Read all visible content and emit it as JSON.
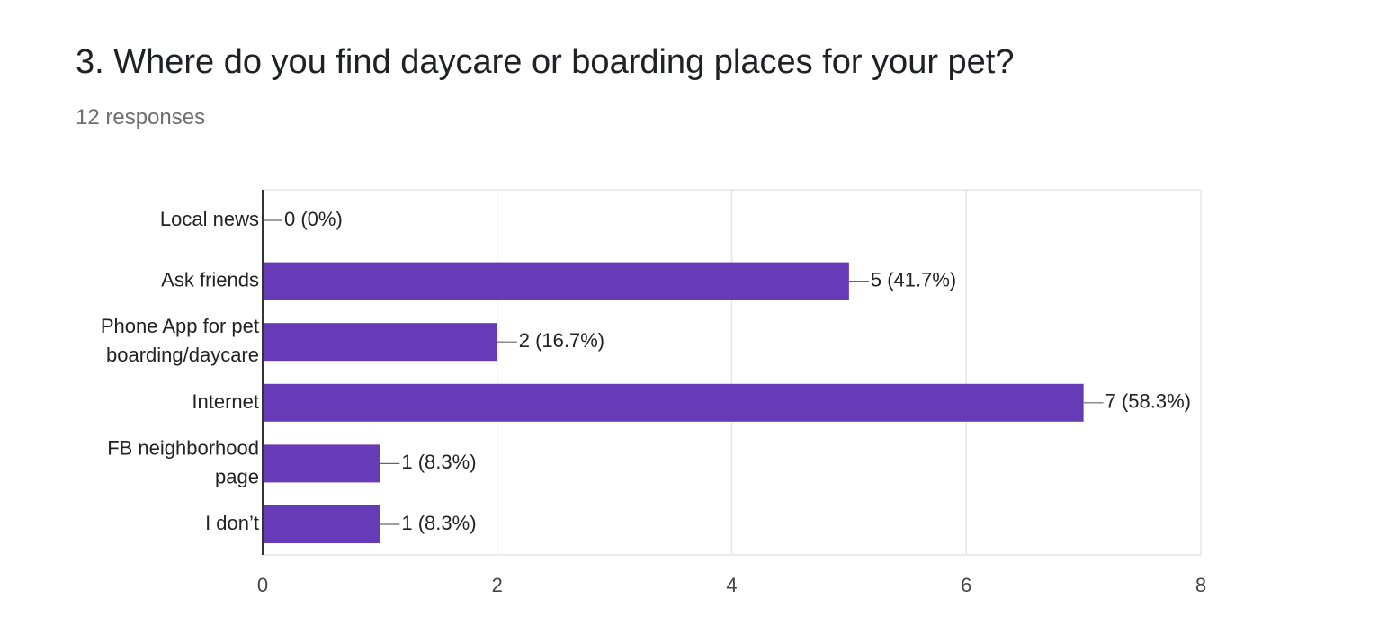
{
  "question": {
    "title": "3. Where do you find daycare or boarding places for your pet?",
    "responses": "12 responses"
  },
  "colors": {
    "bar": "#673ab7",
    "grid": "#e6e6e6",
    "axis": "#333333"
  },
  "chart_data": {
    "type": "bar",
    "orientation": "horizontal",
    "title": "3. Where do you find daycare or boarding places for your pet?",
    "subtitle": "12 responses",
    "categories": [
      [
        "Local news"
      ],
      [
        "Ask friends"
      ],
      [
        "Phone App for pet",
        "boarding/daycare"
      ],
      [
        "Internet"
      ],
      [
        "FB neighborhood",
        "page"
      ],
      [
        "I don’t"
      ]
    ],
    "values": [
      0,
      5,
      2,
      7,
      1,
      1
    ],
    "data_labels": [
      "0 (0%)",
      "5 (41.7%)",
      "2 (16.7%)",
      "7 (58.3%)",
      "1 (8.3%)",
      "1 (8.3%)"
    ],
    "xlim": [
      0,
      8
    ],
    "xticks": [
      0,
      2,
      4,
      6,
      8
    ],
    "grid": true,
    "legend": "none"
  }
}
